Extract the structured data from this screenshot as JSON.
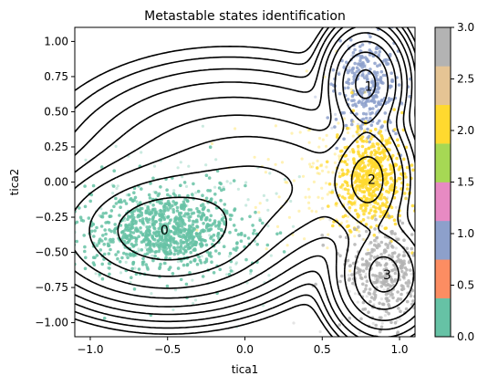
{
  "chart_data": {
    "type": "scatter",
    "title": "Metastable states identification",
    "xlabel": "tica1",
    "ylabel": "tica2",
    "xlim": [
      -1.1,
      1.1
    ],
    "ylim": [
      -1.1,
      1.1
    ],
    "xticks": [
      -1.0,
      -0.5,
      0.0,
      0.5,
      1.0
    ],
    "xtick_labels": [
      "−1.0",
      "−0.5",
      "0.0",
      "0.5",
      "1.0"
    ],
    "yticks": [
      1.0,
      0.75,
      0.5,
      0.25,
      0.0,
      -0.25,
      -0.5,
      -0.75,
      -1.0
    ],
    "ytick_labels": [
      "1.00",
      "0.75",
      "0.50",
      "0.25",
      "0.00",
      "−0.25",
      "−0.50",
      "−0.75",
      "−1.00"
    ],
    "states": [
      {
        "label": "0",
        "center": [
          -0.52,
          -0.34
        ],
        "spread": [
          0.25,
          0.15
        ],
        "color": "#66c2a5"
      },
      {
        "label": "1",
        "center": [
          0.8,
          0.68
        ],
        "spread": [
          0.1,
          0.17
        ],
        "color": "#8da0cb"
      },
      {
        "label": "2",
        "center": [
          0.82,
          0.02
        ],
        "spread": [
          0.11,
          0.17
        ],
        "color": "#ffd92f"
      },
      {
        "label": "3",
        "center": [
          0.92,
          -0.66
        ],
        "spread": [
          0.14,
          0.17
        ],
        "color": "#b3b3b3"
      }
    ],
    "contour_levels": 9,
    "colorbar": {
      "min": 0.0,
      "max": 3.0,
      "tick_values": [
        0.0,
        0.5,
        1.0,
        1.5,
        2.0,
        2.5,
        3.0
      ],
      "tick_labels": [
        "0.0",
        "0.5",
        "1.0",
        "1.5",
        "2.0",
        "2.5",
        "3.0"
      ],
      "colors": [
        "#66c2a5",
        "#fc8d62",
        "#8da0cb",
        "#e78ac3",
        "#a6d854",
        "#ffd92f",
        "#e5c494",
        "#b3b3b3"
      ]
    }
  }
}
